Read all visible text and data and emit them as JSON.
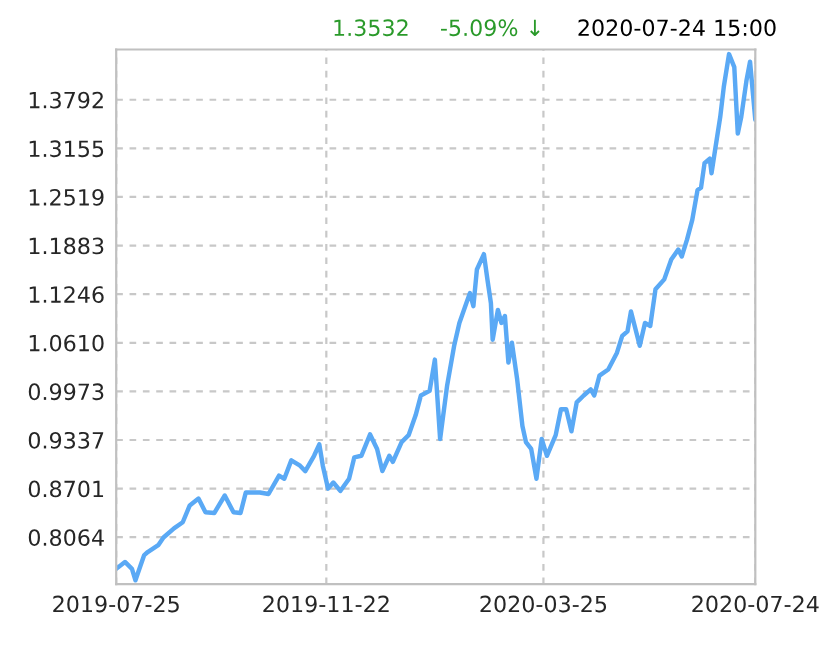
{
  "chart_data": {
    "type": "line",
    "annotations": [
      "1.3532",
      "-5.09% ↓",
      "2020-07-24 15:00"
    ],
    "x": [
      "2019-07-25",
      "2019-07-30",
      "2019-08-03",
      "2019-08-05",
      "2019-08-08",
      "2019-08-10",
      "2019-08-12",
      "2019-08-18",
      "2019-08-21",
      "2019-08-27",
      "2019-09-01",
      "2019-09-05",
      "2019-09-10",
      "2019-09-14",
      "2019-09-19",
      "2019-09-25",
      "2019-09-30",
      "2019-10-04",
      "2019-10-07",
      "2019-10-15",
      "2019-10-20",
      "2019-10-26",
      "2019-10-29",
      "2019-11-02",
      "2019-11-07",
      "2019-11-10",
      "2019-11-15",
      "2019-11-18",
      "2019-11-20",
      "2019-11-23",
      "2019-11-26",
      "2019-11-30",
      "2019-12-05",
      "2019-12-08",
      "2019-12-12",
      "2019-12-17",
      "2019-12-21",
      "2019-12-24",
      "2019-12-28",
      "2019-12-30",
      "2020-01-04",
      "2020-01-08",
      "2020-01-12",
      "2020-01-15",
      "2020-01-20",
      "2020-01-23",
      "2020-01-26",
      "2020-01-30",
      "2020-02-03",
      "2020-02-06",
      "2020-02-10",
      "2020-02-12",
      "2020-02-14",
      "2020-02-16",
      "2020-02-20",
      "2020-02-22",
      "2020-02-24",
      "2020-02-25",
      "2020-02-28",
      "2020-03-01",
      "2020-03-03",
      "2020-03-05",
      "2020-03-07",
      "2020-03-10",
      "2020-03-13",
      "2020-03-15",
      "2020-03-18",
      "2020-03-21",
      "2020-03-24",
      "2020-03-27",
      "2020-04-01",
      "2020-04-04",
      "2020-04-07",
      "2020-04-10",
      "2020-04-13",
      "2020-04-17",
      "2020-04-21",
      "2020-04-23",
      "2020-04-26",
      "2020-05-01",
      "2020-05-04",
      "2020-05-06",
      "2020-05-09",
      "2020-05-12",
      "2020-05-14",
      "2020-05-19",
      "2020-05-22",
      "2020-05-25",
      "2020-05-28",
      "2020-06-02",
      "2020-06-06",
      "2020-06-10",
      "2020-06-12",
      "2020-06-15",
      "2020-06-18",
      "2020-06-21",
      "2020-06-23",
      "2020-06-25",
      "2020-06-28",
      "2020-06-29",
      "2020-07-01",
      "2020-07-04",
      "2020-07-06",
      "2020-07-09",
      "2020-07-12",
      "2020-07-14",
      "2020-07-16",
      "2020-07-19",
      "2020-07-21",
      "2020-07-24"
    ],
    "series": [
      {
        "color": "#5aa9f5",
        "values": [
          0.765,
          0.774,
          0.765,
          0.75,
          0.77,
          0.783,
          0.787,
          0.796,
          0.806,
          0.818,
          0.826,
          0.848,
          0.857,
          0.839,
          0.838,
          0.861,
          0.839,
          0.838,
          0.865,
          0.865,
          0.863,
          0.887,
          0.883,
          0.907,
          0.9,
          0.893,
          0.913,
          0.928,
          0.9,
          0.87,
          0.878,
          0.867,
          0.883,
          0.911,
          0.913,
          0.941,
          0.922,
          0.893,
          0.913,
          0.905,
          0.931,
          0.94,
          0.966,
          0.992,
          0.998,
          1.039,
          0.935,
          1.005,
          1.057,
          1.087,
          1.113,
          1.126,
          1.109,
          1.157,
          1.177,
          1.144,
          1.113,
          1.065,
          1.104,
          1.087,
          1.096,
          1.035,
          1.061,
          1.013,
          0.952,
          0.931,
          0.922,
          0.883,
          0.935,
          0.913,
          0.94,
          0.974,
          0.974,
          0.945,
          0.983,
          0.992,
          1.0,
          0.992,
          1.018,
          1.026,
          1.039,
          1.048,
          1.07,
          1.076,
          1.102,
          1.057,
          1.087,
          1.083,
          1.131,
          1.144,
          1.17,
          1.183,
          1.174,
          1.196,
          1.222,
          1.261,
          1.264,
          1.296,
          1.302,
          1.283,
          1.313,
          1.357,
          1.396,
          1.439,
          1.422,
          1.335,
          1.357,
          1.405,
          1.429,
          1.353
        ]
      }
    ],
    "xlim": [
      "2019-07-25",
      "2020-07-24"
    ],
    "xticks": [
      "2019-07-25",
      "2019-11-22",
      "2020-03-25",
      "2020-07-24"
    ],
    "ylim": [
      0.745,
      1.445
    ],
    "yticks": [
      0.8064,
      0.8701,
      0.9337,
      0.9973,
      {
        "value": 1.061,
        "label": "1.0610"
      },
      1.1246,
      1.1883,
      1.2519,
      1.3155,
      1.3792
    ],
    "grid": true,
    "legend": false
  }
}
